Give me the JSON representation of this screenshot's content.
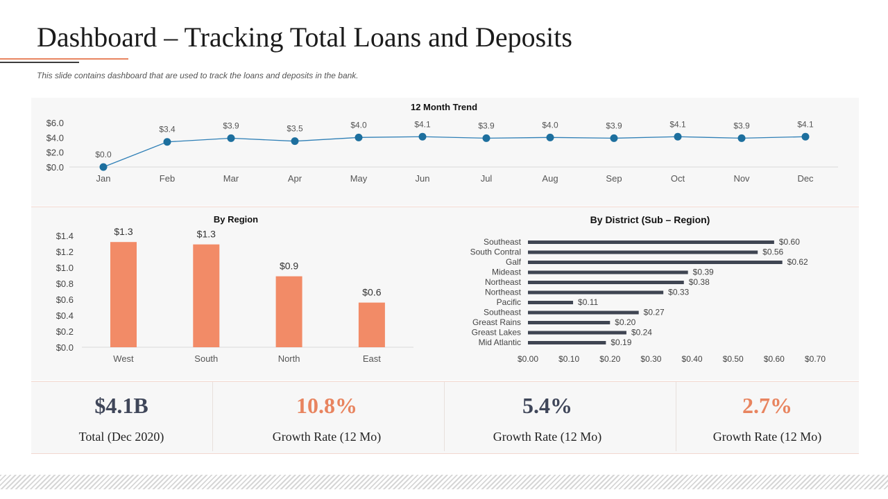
{
  "header": {
    "title": "Dashboard – Tracking Total Loans and Deposits",
    "subtitle": "This slide contains dashboard that are used to track the  loans and deposits in the bank."
  },
  "colors": {
    "accent": "#e8845f",
    "bar": "#f28b67",
    "line": "#2e7fb6",
    "dark_bar": "#3f4552",
    "navy_text": "#3f4659",
    "orange_text": "#e8845f"
  },
  "chart_data": [
    {
      "type": "line",
      "title": "12 Month Trend",
      "categories": [
        "Jan",
        "Feb",
        "Mar",
        "Apr",
        "May",
        "Jun",
        "Jul",
        "Aug",
        "Sep",
        "Oct",
        "Nov",
        "Dec"
      ],
      "values": [
        0.0,
        3.4,
        3.9,
        3.5,
        4.0,
        4.1,
        3.9,
        4.0,
        3.9,
        4.1,
        3.9,
        4.1
      ],
      "value_labels": [
        "$0.0",
        "$3.4",
        "$3.9",
        "$3.5",
        "$4.0",
        "$4.1",
        "$3.9",
        "$4.0",
        "$3.9",
        "$4.1",
        "$3.9",
        "$4.1"
      ],
      "y_ticks": [
        "$6.0",
        "$4.0",
        "$2.0",
        "$0.0"
      ],
      "ylim": [
        0,
        6
      ]
    },
    {
      "type": "bar",
      "title": "By Region",
      "categories": [
        "West",
        "South",
        "North",
        "East"
      ],
      "values": [
        1.3,
        1.3,
        0.9,
        0.6
      ],
      "bar_heights": [
        1.32,
        1.29,
        0.89,
        0.56
      ],
      "value_labels": [
        "$1.3",
        "$1.3",
        "$0.9",
        "$0.6"
      ],
      "y_ticks": [
        "$1.4",
        "$1.2",
        "$1.0",
        "$0.8",
        "$0.6",
        "$0.4",
        "$0.2",
        "$0.0"
      ],
      "ylim": [
        0,
        1.4
      ]
    },
    {
      "type": "bar",
      "orientation": "horizontal",
      "title": "By District (Sub – Region)",
      "categories": [
        "Southeast",
        "South Contral",
        "Galf",
        "Mideast",
        "Northeast",
        "Northeast",
        "Pacific",
        "Southeast",
        "Greast Rains",
        "Greast Lakes",
        "Mid Atlantic"
      ],
      "values": [
        0.6,
        0.56,
        0.62,
        0.39,
        0.38,
        0.33,
        0.11,
        0.27,
        0.2,
        0.24,
        0.19
      ],
      "value_labels": [
        "$0.60",
        "$0.56",
        "$0.62",
        "$0.39",
        "$0.38",
        "$0.33",
        "$0.11",
        "$0.27",
        "$0.20",
        "$0.24",
        "$0.19"
      ],
      "x_ticks": [
        "$0.00",
        "$0.10",
        "$0.20",
        "$0.30",
        "$0.40",
        "$0.50",
        "$0.60",
        "$0.70"
      ],
      "xlim": [
        0,
        0.7
      ]
    }
  ],
  "kpis": [
    {
      "value": "$4.1B",
      "label": "Total (Dec 2020)",
      "color": "#3f4659"
    },
    {
      "value": "10.8%",
      "label": "Growth Rate (12 Mo)",
      "color": "#e8845f"
    },
    {
      "value": "5.4%",
      "label": "Growth Rate (12 Mo)",
      "color": "#3f4659"
    },
    {
      "value": "2.7%",
      "label": "Growth Rate (12 Mo)",
      "color": "#e8845f"
    }
  ]
}
